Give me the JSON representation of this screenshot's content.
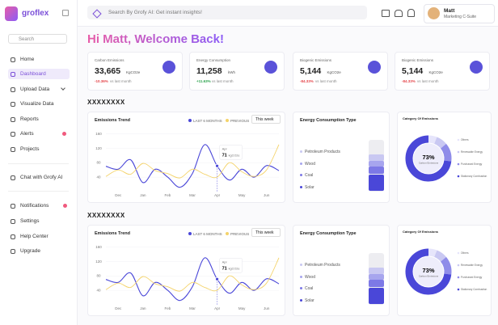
{
  "brand": "groflex",
  "sidebar": {
    "search": "Search",
    "nav": [
      "Home",
      "Dashboard",
      "Upload Data",
      "Visualize Data",
      "Reports",
      "Alerts",
      "Projects"
    ],
    "chat": "Chat with Grofy AI",
    "bottom": [
      "Notifications",
      "Settings",
      "Help Center",
      "Upgrade"
    ]
  },
  "topbar": {
    "search": "Search By Grofy AI: Get instant insights!",
    "user": {
      "name": "Matt",
      "role": "Marketing C-Suite"
    }
  },
  "greeting": "Hi Matt, Welcome Back!",
  "kpis": [
    {
      "title": "Carbon Emissions",
      "value": "33,665",
      "unit": "KgCO2e",
      "change": "-10.36%",
      "note": "vs last month"
    },
    {
      "title": "Energy Consumption",
      "value": "11,258",
      "unit": "kWh",
      "change": "+11.63%",
      "note": "vs last month"
    },
    {
      "title": "Biogenic Emissions",
      "value": "5,144",
      "unit": "KgCO2e",
      "change": "-84.33%",
      "note": "vs last month"
    },
    {
      "title": "Biogenic Emissions",
      "value": "5,144",
      "unit": "KgCO2e",
      "change": "-84.33%",
      "note": "vs last month"
    }
  ],
  "sections": [
    {
      "title": "XXXXXXXX",
      "trend": {
        "title": "Emissions Trend",
        "period": "This week",
        "categories": [
          "Dec",
          "Jan",
          "Feb",
          "Mar",
          "Apr",
          "May",
          "Jun"
        ],
        "ylim": [
          0,
          170
        ],
        "yticks": [
          40,
          80,
          120,
          160
        ],
        "series": [
          {
            "name": "LAST 6 MONTHS",
            "color": "#4a47d8",
            "values": [
              70,
              62,
              88,
              25,
              62,
              40,
              12,
              50,
              130,
              71,
              32,
              62,
              40,
              72,
              58
            ]
          },
          {
            "name": "PREVIOUS",
            "color": "#f4d36a",
            "values": [
              42,
              60,
              48,
              78,
              58,
              50,
              38,
              62,
              48,
              40,
              80,
              55,
              42,
              60,
              130
            ]
          }
        ],
        "tooltip": {
          "label": "Apr",
          "value": 71,
          "unit": "kgCO2e"
        }
      },
      "energy": {
        "title": "Energy Consumption Type",
        "items": [
          {
            "name": "Petroleum Products",
            "value": 12,
            "color": "#c9c8f2"
          },
          {
            "name": "Wood",
            "value": 10,
            "color": "#a7a5ee"
          },
          {
            "name": "Coal",
            "value": 14,
            "color": "#7d79e6"
          },
          {
            "name": "Solar",
            "value": 30,
            "color": "#4a47d8"
          }
        ]
      },
      "category": {
        "title": "Category Of Emissions",
        "center_label": "73%",
        "caption": "Carbon Emissions",
        "segments": [
          {
            "name": "Others",
            "value": 6,
            "color": "#e6e5fb"
          },
          {
            "name": "Renewable Energy",
            "value": 8,
            "color": "#c9c8f2"
          },
          {
            "name": "Purchased Energy",
            "value": 13,
            "color": "#8f8ce9"
          },
          {
            "name": "Stationary Combustion",
            "value": 73,
            "color": "#4a47d8"
          }
        ]
      }
    },
    {
      "title": "XXXXXXXX",
      "trend": {
        "title": "Emissions Trend",
        "period": "This week",
        "categories": [
          "Dec",
          "Jan",
          "Feb",
          "Mar",
          "Apr",
          "May",
          "Jun"
        ],
        "ylim": [
          0,
          170
        ],
        "yticks": [
          40,
          80,
          120,
          160
        ],
        "series": [
          {
            "name": "LAST 6 MONTHS",
            "color": "#4a47d8",
            "values": [
              70,
              62,
              88,
              25,
              62,
              40,
              12,
              50,
              130,
              71,
              32,
              62,
              40,
              72,
              58
            ]
          },
          {
            "name": "PREVIOUS",
            "color": "#f4d36a",
            "values": [
              42,
              60,
              48,
              78,
              58,
              50,
              38,
              62,
              48,
              40,
              80,
              55,
              42,
              60,
              130
            ]
          }
        ],
        "tooltip": {
          "label": "Apr",
          "value": 71,
          "unit": "kgCO2e"
        }
      },
      "energy": {
        "title": "Energy Consumption Type",
        "items": [
          {
            "name": "Petroleum Products",
            "value": 12,
            "color": "#c9c8f2"
          },
          {
            "name": "Wood",
            "value": 10,
            "color": "#a7a5ee"
          },
          {
            "name": "Coal",
            "value": 14,
            "color": "#7d79e6"
          },
          {
            "name": "Solar",
            "value": 30,
            "color": "#4a47d8"
          }
        ]
      },
      "category": {
        "title": "Category Of Emissions",
        "center_label": "73%",
        "caption": "Carbon Emissions",
        "segments": [
          {
            "name": "Others",
            "value": 6,
            "color": "#e6e5fb"
          },
          {
            "name": "Renewable Energy",
            "value": 8,
            "color": "#c9c8f2"
          },
          {
            "name": "Purchased Energy",
            "value": 13,
            "color": "#8f8ce9"
          },
          {
            "name": "Stationary Combustion",
            "value": 73,
            "color": "#4a47d8"
          }
        ]
      }
    }
  ]
}
